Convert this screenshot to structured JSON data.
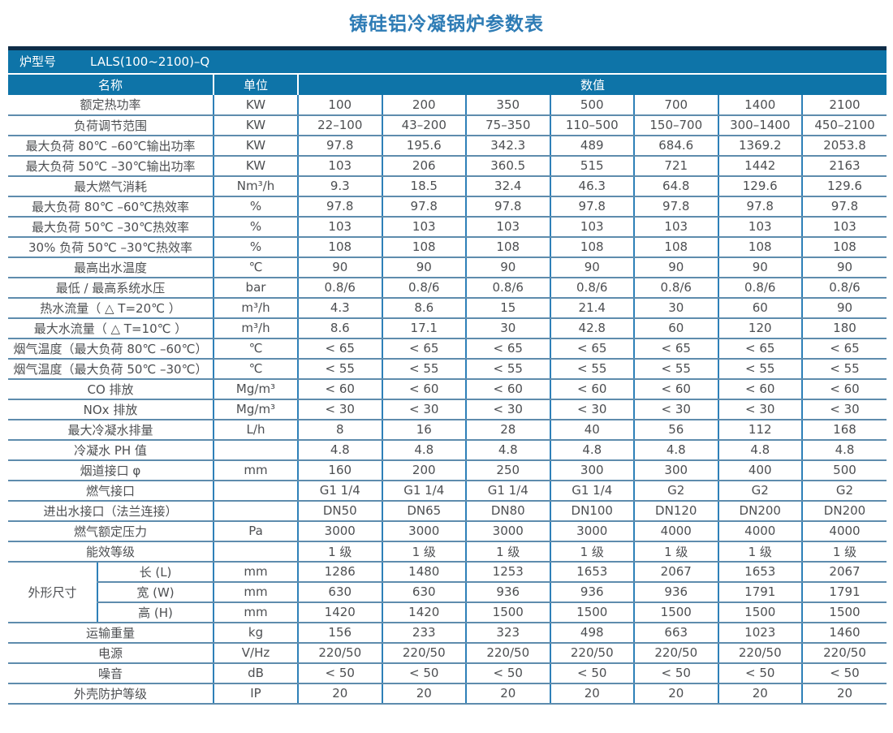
{
  "title": "铸硅铝冷凝锅炉参数表",
  "table": {
    "model_label": "炉型号",
    "model_value": "LALS(100~2100)–Q",
    "col_headers": {
      "name": "名称",
      "unit": "单位",
      "values": "数值"
    },
    "rows": [
      {
        "name": "额定热功率",
        "unit": "KW",
        "values": [
          "100",
          "200",
          "350",
          "500",
          "700",
          "1400",
          "2100"
        ]
      },
      {
        "name": "负荷调节范围",
        "unit": "KW",
        "values": [
          "22–100",
          "43–200",
          "75–350",
          "110–500",
          "150–700",
          "300–1400",
          "450–2100"
        ]
      },
      {
        "name": "最大负荷 80℃ –60℃输出功率",
        "unit": "KW",
        "values": [
          "97.8",
          "195.6",
          "342.3",
          "489",
          "684.6",
          "1369.2",
          "2053.8"
        ]
      },
      {
        "name": "最大负荷 50℃ –30℃输出功率",
        "unit": "KW",
        "values": [
          "103",
          "206",
          "360.5",
          "515",
          "721",
          "1442",
          "2163"
        ]
      },
      {
        "name": "最大燃气消耗",
        "unit": "Nm³/h",
        "values": [
          "9.3",
          "18.5",
          "32.4",
          "46.3",
          "64.8",
          "129.6",
          "129.6"
        ]
      },
      {
        "name": "最大负荷 80℃ –60℃热效率",
        "unit": "%",
        "values": [
          "97.8",
          "97.8",
          "97.8",
          "97.8",
          "97.8",
          "97.8",
          "97.8"
        ]
      },
      {
        "name": "最大负荷 50℃ –30℃热效率",
        "unit": "%",
        "values": [
          "103",
          "103",
          "103",
          "103",
          "103",
          "103",
          "103"
        ]
      },
      {
        "name": "30% 负荷 50℃ –30℃热效率",
        "unit": "%",
        "values": [
          "108",
          "108",
          "108",
          "108",
          "108",
          "108",
          "108"
        ]
      },
      {
        "name": "最高出水温度",
        "unit": "℃",
        "values": [
          "90",
          "90",
          "90",
          "90",
          "90",
          "90",
          "90"
        ]
      },
      {
        "name": "最低 / 最高系统水压",
        "unit": "bar",
        "values": [
          "0.8/6",
          "0.8/6",
          "0.8/6",
          "0.8/6",
          "0.8/6",
          "0.8/6",
          "0.8/6"
        ]
      },
      {
        "name": "热水流量（ △ T=20℃ ）",
        "unit": "m³/h",
        "values": [
          "4.3",
          "8.6",
          "15",
          "21.4",
          "30",
          "60",
          "90"
        ]
      },
      {
        "name": "最大水流量（ △ T=10℃ ）",
        "unit": "m³/h",
        "values": [
          "8.6",
          "17.1",
          "30",
          "42.8",
          "60",
          "120",
          "180"
        ]
      },
      {
        "name": "烟气温度（最大负荷 80℃ –60℃）",
        "unit": "℃",
        "values": [
          "< 65",
          "< 65",
          "< 65",
          "< 65",
          "< 65",
          "< 65",
          "< 65"
        ]
      },
      {
        "name": "烟气温度（最大负荷 50℃ –30℃）",
        "unit": "℃",
        "values": [
          "< 55",
          "< 55",
          "< 55",
          "< 55",
          "< 55",
          "< 55",
          "< 55"
        ]
      },
      {
        "name": "CO 排放",
        "unit": "Mg/m³",
        "values": [
          "< 60",
          "< 60",
          "< 60",
          "< 60",
          "< 60",
          "< 60",
          "< 60"
        ]
      },
      {
        "name": "NOx 排放",
        "unit": "Mg/m³",
        "values": [
          "< 30",
          "< 30",
          "< 30",
          "< 30",
          "< 30",
          "< 30",
          "< 30"
        ]
      },
      {
        "name": "最大冷凝水排量",
        "unit": "L/h",
        "values": [
          "8",
          "16",
          "28",
          "40",
          "56",
          "112",
          "168"
        ]
      },
      {
        "name": "冷凝水 PH 值",
        "unit": "",
        "values": [
          "4.8",
          "4.8",
          "4.8",
          "4.8",
          "4.8",
          "4.8",
          "4.8"
        ]
      },
      {
        "name": "烟道接口 φ",
        "unit": "mm",
        "values": [
          "160",
          "200",
          "250",
          "300",
          "300",
          "400",
          "500"
        ]
      },
      {
        "name": "燃气接口",
        "unit": "",
        "values": [
          "G1 1/4",
          "G1 1/4",
          "G1 1/4",
          "G1 1/4",
          "G2",
          "G2",
          "G2"
        ]
      },
      {
        "name": "进出水接口（法兰连接）",
        "unit": "",
        "values": [
          "DN50",
          "DN65",
          "DN80",
          "DN100",
          "DN120",
          "DN200",
          "DN200"
        ]
      },
      {
        "name": "燃气额定压力",
        "unit": "Pa",
        "values": [
          "3000",
          "3000",
          "3000",
          "3000",
          "4000",
          "4000",
          "4000"
        ]
      },
      {
        "name": "能效等级",
        "unit": "",
        "values": [
          "1 级",
          "1 级",
          "1 级",
          "1 级",
          "1 级",
          "1 级",
          "1 级"
        ]
      },
      {
        "group": "外形尺寸",
        "group_span": 3,
        "sub": true,
        "name": "长 (L)",
        "unit": "mm",
        "values": [
          "1286",
          "1480",
          "1253",
          "1653",
          "2067",
          "1653",
          "2067"
        ]
      },
      {
        "sub": true,
        "name": "宽 (W)",
        "unit": "mm",
        "values": [
          "630",
          "630",
          "936",
          "936",
          "936",
          "1791",
          "1791"
        ]
      },
      {
        "sub": true,
        "name": "高 (H)",
        "unit": "mm",
        "values": [
          "1420",
          "1420",
          "1500",
          "1500",
          "1500",
          "1500",
          "1500"
        ]
      },
      {
        "name": "运输重量",
        "unit": "kg",
        "values": [
          "156",
          "233",
          "323",
          "498",
          "663",
          "1023",
          "1460"
        ]
      },
      {
        "name": "电源",
        "unit": "V/Hz",
        "values": [
          "220/50",
          "220/50",
          "220/50",
          "220/50",
          "220/50",
          "220/50",
          "220/50"
        ]
      },
      {
        "name": "噪音",
        "unit": "dB",
        "values": [
          "< 50",
          "< 50",
          "< 50",
          "< 50",
          "< 50",
          "< 50",
          "< 50"
        ]
      },
      {
        "name": "外壳防护等级",
        "unit": "IP",
        "values": [
          "20",
          "20",
          "20",
          "20",
          "20",
          "20",
          "20"
        ]
      }
    ]
  }
}
